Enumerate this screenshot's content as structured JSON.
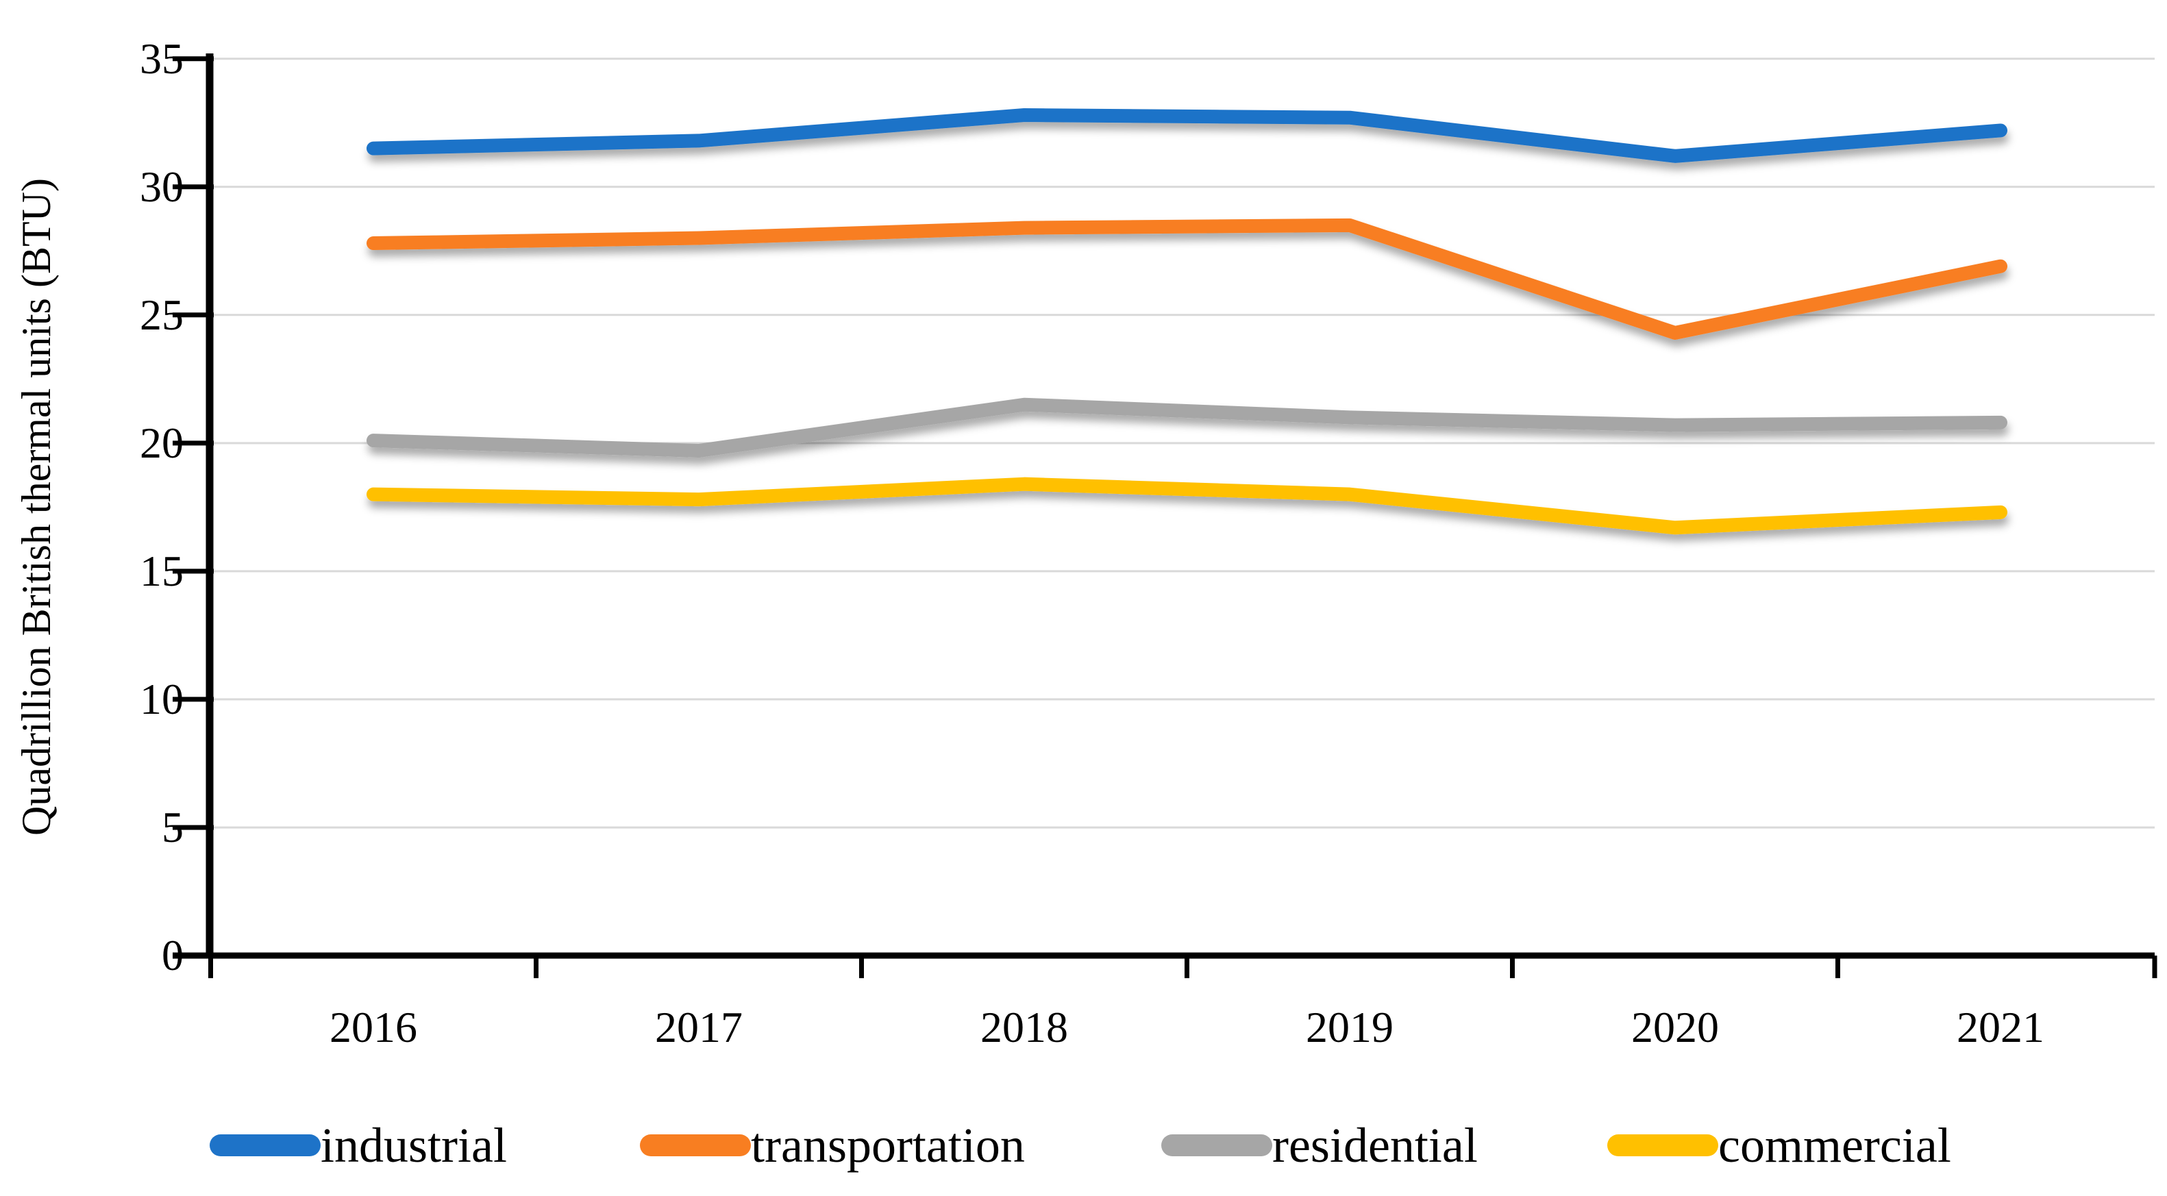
{
  "chart_data": {
    "type": "line",
    "title": "",
    "xlabel": "",
    "ylabel": "Quadrillion British thermal units (BTU)",
    "categories": [
      "2016",
      "2017",
      "2018",
      "2019",
      "2020",
      "2021"
    ],
    "y_ticks": [
      "0",
      "5",
      "10",
      "15",
      "20",
      "25",
      "30",
      "35"
    ],
    "ylim": [
      0,
      35
    ],
    "grid": true,
    "legend_position": "bottom",
    "axis_color": "#000000",
    "gridline_color": "#d9d9d9",
    "series": [
      {
        "name": "industrial",
        "color": "#1e73c8",
        "values": [
          31.5,
          31.8,
          32.8,
          32.7,
          31.2,
          32.2
        ]
      },
      {
        "name": "transportation",
        "color": "#f87e21",
        "values": [
          27.8,
          28.0,
          28.4,
          28.5,
          24.3,
          26.9
        ]
      },
      {
        "name": "residential",
        "color": "#a6a6a6",
        "values": [
          20.1,
          19.7,
          21.5,
          21.0,
          20.7,
          20.8
        ]
      },
      {
        "name": "commercial",
        "color": "#ffc000",
        "values": [
          18.0,
          17.8,
          18.4,
          18.0,
          16.7,
          17.3
        ]
      }
    ]
  }
}
